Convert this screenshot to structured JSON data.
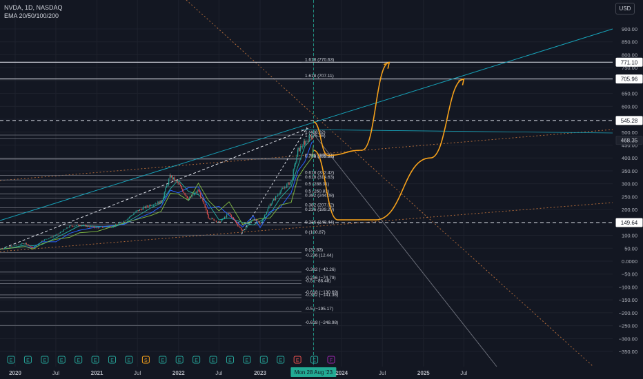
{
  "header": {
    "symbol_line": "NVDA, 1D, NASDAQ",
    "indicator_line": "EMA 20/50/100/200"
  },
  "currency_button": "USD",
  "colors": {
    "background": "#131722",
    "grid": "#1e222d",
    "axis_text": "#b2b5be",
    "candle_up": "#26a69a",
    "candle_down": "#ef5350",
    "ema20": "#26a69a",
    "ema50": "#2962ff",
    "ema100": "#7cb342",
    "projection": "#f7a21b",
    "trendline": "#17a2b8",
    "fib_line": "#787b86",
    "diag_line": "#b06a3a",
    "cursor": "#22ab94"
  },
  "chart_data": {
    "type": "candlestick",
    "symbol": "NVDA",
    "interval": "1D",
    "exchange": "NASDAQ",
    "indicators": [
      "EMA 20",
      "EMA 50",
      "EMA 100",
      "EMA 200"
    ],
    "y_axis": {
      "ticks": [
        "900.00",
        "850.00",
        "800.00",
        "750.00",
        "700.00",
        "650.00",
        "600.00",
        "550.00",
        "500.00",
        "450.00",
        "400.00",
        "350.00",
        "300.00",
        "250.00",
        "200.00",
        "150.00",
        "100.00",
        "50.00",
        "0.0000",
        "−50.00",
        "−100.00",
        "−150.00",
        "−200.00",
        "−250.00",
        "−300.00",
        "−350.00"
      ],
      "tick_values": [
        900,
        850,
        800,
        750,
        700,
        650,
        600,
        550,
        500,
        450,
        400,
        350,
        300,
        250,
        200,
        150,
        100,
        50,
        0,
        -50,
        -100,
        -150,
        -200,
        -250,
        -300,
        -350
      ],
      "range": [
        -362,
        930
      ]
    },
    "x_axis": {
      "ticks": [
        "2020",
        "Jul",
        "2021",
        "Jul",
        "2022",
        "Jul",
        "2023",
        "Mon 28 Aug '23",
        "2024",
        "Jul",
        "2025",
        "Jul"
      ],
      "tick_dates": [
        "2020-01-01",
        "2020-07-01",
        "2021-01-01",
        "2021-07-01",
        "2022-01-01",
        "2022-07-01",
        "2023-01-01",
        "2023-08-28",
        "2024-01-01",
        "2024-07-01",
        "2025-01-01",
        "2025-07-01"
      ],
      "range": [
        "2019-10-01",
        "2025-12-31"
      ]
    },
    "crosshair_date_label": "Mon 28 Aug '23",
    "price_labels": [
      {
        "value": 771.1,
        "text": "771.10",
        "style": "white"
      },
      {
        "value": 705.96,
        "text": "705.96",
        "style": "white"
      },
      {
        "value": 545.28,
        "text": "545.28",
        "style": "white"
      },
      {
        "value": 468.35,
        "text": "468.35",
        "style": "current"
      },
      {
        "value": 149.64,
        "text": "149.64",
        "style": "white"
      }
    ],
    "horizontal_levels": [
      {
        "value": 771.1,
        "style": "solid"
      },
      {
        "value": 705.96,
        "style": "solid"
      },
      {
        "value": 545.28,
        "style": "dashed"
      },
      {
        "value": 149.64,
        "style": "dashed"
      }
    ],
    "fib_upper": [
      {
        "value": 770.63,
        "label": "1.618 (770.63)"
      },
      {
        "value": 707.11,
        "label": "1.618 (707.11)"
      },
      {
        "value": 488.82,
        "label": "1 (488.82)"
      },
      {
        "value": 475.36,
        "label": "1 (475.36)"
      },
      {
        "value": 399.34,
        "label": "0.786 (399.34)"
      },
      {
        "value": 395.38,
        "label": "0.786 (395.38)"
      },
      {
        "value": 332.42,
        "label": "0.618 (332.42)"
      },
      {
        "value": 314.63,
        "label": "0.618 (314.63)"
      },
      {
        "value": 288.31,
        "label": "0.5 (288.31)"
      },
      {
        "value": 260.83,
        "label": "0.5 (260.83)"
      },
      {
        "value": 244.08,
        "label": "0.382 (244.08)"
      },
      {
        "value": 207.02,
        "label": "0.382 (207.02)"
      },
      {
        "value": 189.29,
        "label": "0.236 (189.29)"
      },
      {
        "value": 140.44,
        "label": "0.236 (140.44)"
      },
      {
        "value": 100.87,
        "label": "0 (100.87)"
      }
    ],
    "fib_lower": [
      {
        "value": 32.83,
        "label": "0 (32.83)"
      },
      {
        "value": 12.44,
        "label": "-0.236 (12.44)"
      },
      {
        "value": -42.26,
        "label": "-0.382 (−42.26)"
      },
      {
        "value": -74.79,
        "label": "-0.236 (−74.79)"
      },
      {
        "value": -86.48,
        "label": "-0.5 (−86.48)"
      },
      {
        "value": -130.69,
        "label": "-0.618 (−130.69)"
      },
      {
        "value": -141.36,
        "label": "-0.382 (−141.36)"
      },
      {
        "value": -195.17,
        "label": "-0.5 (−195.17)"
      },
      {
        "value": -248.98,
        "label": "-0.618 (−248.98)"
      }
    ],
    "price_series": [
      {
        "date": "2019-10-01",
        "value": 44
      },
      {
        "date": "2019-12-01",
        "value": 55
      },
      {
        "date": "2020-02-15",
        "value": 70
      },
      {
        "date": "2020-03-20",
        "value": 50
      },
      {
        "date": "2020-05-01",
        "value": 80
      },
      {
        "date": "2020-07-01",
        "value": 100
      },
      {
        "date": "2020-09-01",
        "value": 135
      },
      {
        "date": "2020-10-15",
        "value": 140
      },
      {
        "date": "2021-01-01",
        "value": 130
      },
      {
        "date": "2021-03-15",
        "value": 135
      },
      {
        "date": "2021-05-01",
        "value": 155
      },
      {
        "date": "2021-07-01",
        "value": 195
      },
      {
        "date": "2021-09-01",
        "value": 220
      },
      {
        "date": "2021-10-15",
        "value": 230
      },
      {
        "date": "2021-11-25",
        "value": 330
      },
      {
        "date": "2021-12-31",
        "value": 300
      },
      {
        "date": "2022-02-15",
        "value": 240
      },
      {
        "date": "2022-03-31",
        "value": 275
      },
      {
        "date": "2022-05-15",
        "value": 170
      },
      {
        "date": "2022-07-01",
        "value": 150
      },
      {
        "date": "2022-08-15",
        "value": 185
      },
      {
        "date": "2022-10-15",
        "value": 115
      },
      {
        "date": "2022-12-01",
        "value": 165
      },
      {
        "date": "2023-01-01",
        "value": 145
      },
      {
        "date": "2023-02-15",
        "value": 220
      },
      {
        "date": "2023-04-01",
        "value": 270
      },
      {
        "date": "2023-05-20",
        "value": 310
      },
      {
        "date": "2023-06-20",
        "value": 430
      },
      {
        "date": "2023-07-20",
        "value": 460
      },
      {
        "date": "2023-08-20",
        "value": 490
      },
      {
        "date": "2023-08-28",
        "value": 468.35
      }
    ],
    "projection_paths": [
      {
        "name": "upper-projection",
        "points": [
          {
            "date": "2023-08-28",
            "value": 540
          },
          {
            "date": "2023-11-01",
            "value": 410
          },
          {
            "date": "2024-04-01",
            "value": 430
          },
          {
            "date": "2024-08-01",
            "value": 770
          }
        ]
      },
      {
        "name": "lower-projection",
        "points": [
          {
            "date": "2023-08-28",
            "value": 430
          },
          {
            "date": "2023-12-15",
            "value": 160
          },
          {
            "date": "2024-06-01",
            "value": 160
          },
          {
            "date": "2025-02-01",
            "value": 400
          },
          {
            "date": "2025-07-01",
            "value": 706
          }
        ]
      }
    ],
    "event_markers": [
      "E",
      "E",
      "E",
      "E",
      "E",
      "E",
      "E",
      "E",
      "S",
      "E",
      "E",
      "E",
      "E",
      "E",
      "E",
      "E",
      "E",
      "E",
      "E",
      "F"
    ],
    "grid": true
  }
}
